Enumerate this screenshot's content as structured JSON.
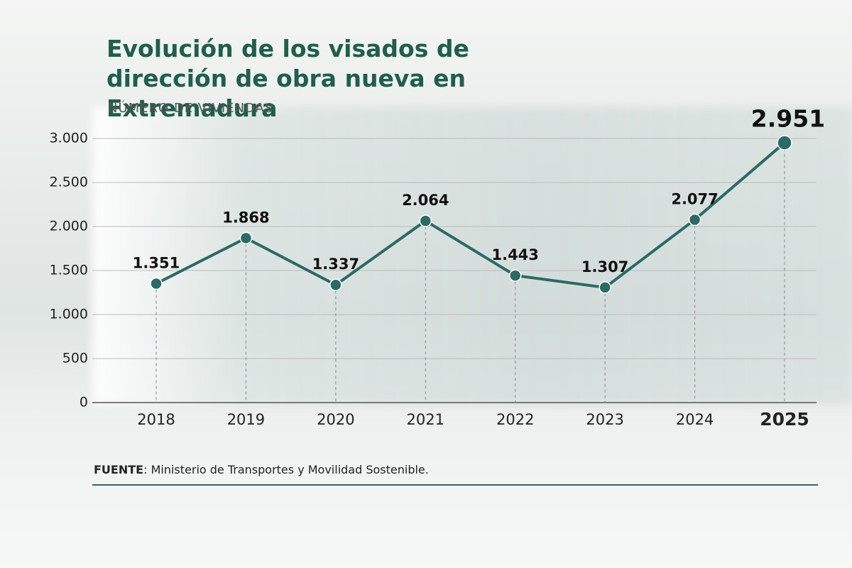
{
  "chart_data": {
    "type": "line",
    "title": "Evolución de los visados de dirección de obra nueva en Extremadura",
    "subtitle": "NÚMERO DE VIVIENDAS",
    "categories": [
      "2018",
      "2019",
      "2020",
      "2021",
      "2022",
      "2023",
      "2024",
      "2025"
    ],
    "series": [
      {
        "name": "Viviendas",
        "color": "#2a6b63",
        "values": [
          1351,
          1868,
          1337,
          2064,
          1443,
          1307,
          2077,
          2951
        ],
        "value_labels": [
          "1.351",
          "1.868",
          "1.337",
          "2.064",
          "1.443",
          "1.307",
          "2.077",
          "2.951"
        ]
      }
    ],
    "ylim": [
      0,
      3000
    ],
    "yticks": [
      0,
      500,
      {
        "value": 1000,
        "label": "1.000"
      },
      {
        "value": 1500,
        "label": "1.500"
      },
      {
        "value": 2000,
        "label": "2.000"
      },
      {
        "value": 2500,
        "label": "2.500"
      },
      {
        "value": 3000,
        "label": "3.000"
      }
    ],
    "grid": true,
    "source_label": "FUENTE",
    "source": ": Ministerio de Transportes y Movilidad Sostenible."
  }
}
